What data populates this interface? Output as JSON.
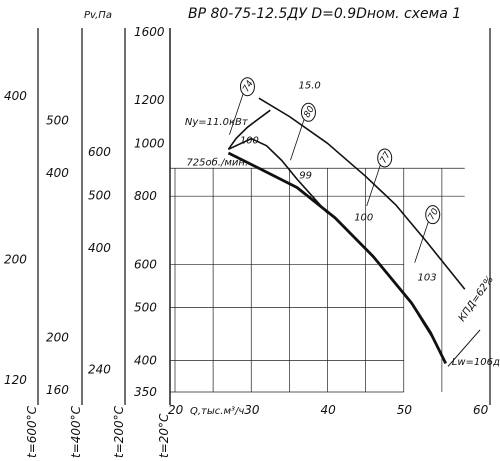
{
  "chart_data": {
    "type": "line",
    "title": "ВР 80-75-12.5ДУ  D=0.9Dном. схема 1",
    "xlabel": "Q,тыс.м³/ч",
    "ylabel": "Pv,Па",
    "x_scale": "linear",
    "y_scale": "log",
    "xlim": [
      20,
      62
    ],
    "ylim": [
      340,
      1650
    ],
    "x_ticks": [
      "20",
      "30",
      "40",
      "50",
      "60"
    ],
    "y_ticks": [
      {
        "value": 350,
        "label": "350"
      },
      {
        "value": 400,
        "label": "400"
      },
      {
        "value": 500,
        "label": "500"
      },
      {
        "value": 600,
        "label": "600"
      },
      {
        "value": 800,
        "label": "800"
      },
      {
        "value": 1000,
        "label": "1000"
      },
      {
        "value": 1200,
        "label": "1200"
      },
      {
        "value": 1600,
        "label": "1600"
      }
    ],
    "temperature_scales": [
      {
        "name": "t=600°C",
        "labels": [
          {
            "text": "400",
            "pv": 1222
          },
          {
            "text": "200",
            "pv": 613
          },
          {
            "text": "120",
            "pv": 368
          }
        ]
      },
      {
        "name": "t=400°C",
        "labels": [
          {
            "text": "500",
            "pv": 1101
          },
          {
            "text": "400",
            "pv": 882
          },
          {
            "text": "200",
            "pv": 441
          },
          {
            "text": "160",
            "pv": 353
          }
        ]
      },
      {
        "name": "t=200°C",
        "labels": [
          {
            "text": "600",
            "pv": 964
          },
          {
            "text": "500",
            "pv": 803
          },
          {
            "text": "400",
            "pv": 643
          },
          {
            "text": "240",
            "pv": 385
          }
        ]
      },
      {
        "name": "t=20°C",
        "labels": []
      }
    ],
    "series": [
      {
        "name": "725об./мин.",
        "style": "heavy",
        "points": [
          [
            27,
            960
          ],
          [
            31,
            900
          ],
          [
            36,
            830
          ],
          [
            41,
            730
          ],
          [
            46,
            620
          ],
          [
            51,
            510
          ],
          [
            53.5,
            450
          ],
          [
            55.5,
            395
          ]
        ]
      },
      {
        "name": "15.0",
        "style": "medium",
        "points": [
          [
            31,
            1210
          ],
          [
            35,
            1120
          ],
          [
            40,
            1000
          ],
          [
            45,
            870
          ],
          [
            49,
            770
          ],
          [
            53,
            660
          ],
          [
            56,
            585
          ],
          [
            58,
            540
          ]
        ]
      },
      {
        "name": "Ny=11.0кВт",
        "style": "medium",
        "points": [
          [
            27,
            975
          ],
          [
            28,
            1020
          ],
          [
            29.5,
            1070
          ],
          [
            31,
            1110
          ],
          [
            32.5,
            1150
          ]
        ]
      },
      {
        "name": "lower-envelope",
        "style": "medium",
        "points": [
          [
            27,
            975
          ],
          [
            30,
            1020
          ],
          [
            32,
            990
          ],
          [
            34,
            930
          ],
          [
            36,
            860
          ],
          [
            38,
            800
          ],
          [
            40,
            745
          ]
        ]
      },
      {
        "name": "right-boundary",
        "style": "medium",
        "points": [
          [
            51,
            510
          ],
          [
            52.5,
            470
          ],
          [
            54,
            435
          ],
          [
            55.5,
            395
          ]
        ]
      },
      {
        "name": "efficiency-line",
        "style": "thin",
        "points": [
          [
            55.8,
            390
          ],
          [
            60,
            455
          ]
        ]
      }
    ],
    "efficiency_markers": [
      {
        "label": "74",
        "x": 29.5,
        "pv": 1270
      },
      {
        "label": "80",
        "x": 37.5,
        "pv": 1140
      },
      {
        "label": "77",
        "x": 47.5,
        "pv": 940
      },
      {
        "label": "70",
        "x": 53.8,
        "pv": 740
      }
    ],
    "annotations": [
      {
        "text": "100",
        "x": 28.5,
        "pv": 1000
      },
      {
        "text": "99",
        "x": 36.3,
        "pv": 862
      },
      {
        "text": "100",
        "x": 43.5,
        "pv": 722
      },
      {
        "text": "103",
        "x": 51.8,
        "pv": 560
      },
      {
        "text": "15.0",
        "x": 36.2,
        "pv": 1260
      },
      {
        "text": "Ny=11.0кВт",
        "x": 21.3,
        "pv": 1080
      },
      {
        "text": "725об./мин.",
        "x": 21.5,
        "pv": 910
      },
      {
        "text": "Lw=106дБА",
        "x": 56.3,
        "pv": 392
      },
      {
        "text": "КПД=62%",
        "x": 57.8,
        "pv": 470
      }
    ],
    "grid": true,
    "grid_x": [
      20,
      25,
      30,
      35,
      40,
      45,
      50,
      55
    ],
    "grid_y": [
      350,
      400,
      500,
      600,
      800,
      900
    ]
  }
}
